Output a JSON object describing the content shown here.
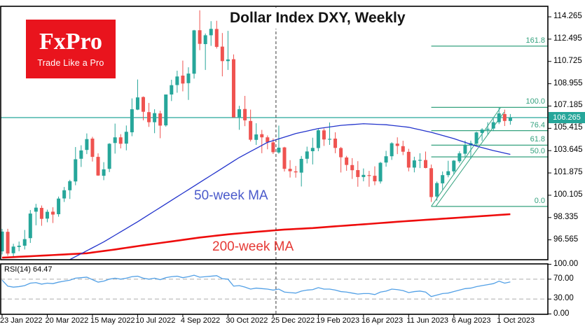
{
  "title": "Dollar Index DXY, Weekly",
  "logo": {
    "name": "FxPro",
    "tagline": "Trade Like a Pro"
  },
  "labels": {
    "ma50": "50-week MA",
    "ma200": "200-week MA",
    "rsi": "RSI(14) 64.47"
  },
  "price_axis": {
    "ticks": [
      114.265,
      112.495,
      110.725,
      108.955,
      107.185,
      105.415,
      103.645,
      101.875,
      100.105,
      98.335,
      96.565
    ],
    "current_price": "106.265"
  },
  "rsi_axis": {
    "ticks": [
      100,
      70,
      30,
      0
    ]
  },
  "colors": {
    "bull": "#26a69a",
    "bear": "#ef5350",
    "ma50_line": "#2233cc",
    "ma200_line": "#ee0c0c",
    "ma50_label": "#4a5acb",
    "ma200_label": "#e53935",
    "rsi_line": "#52a0e6",
    "fib": "#35a27f",
    "price_line": "#26a69a",
    "badge_bg": "#26a69a",
    "logo_bg": "#e9141d",
    "border": "#000000",
    "guide_dash": "#b5b5b5",
    "separator": "#3a3a3a"
  },
  "chart_data": {
    "type": "candlestick",
    "title": "Dollar Index DXY, Weekly",
    "symbol": "Dollar Index DXY",
    "timeframe": "Weekly",
    "x_ticks": [
      "23 Jan 2022",
      "20 Mar 2022",
      "15 May 2022",
      "10 Jul 2022",
      "4 Sep 2022",
      "30 Oct 2022",
      "25 Dec 2022",
      "19 Feb 2023",
      "16 Apr 2023",
      "11 Jun 2023",
      "6 Aug 2023",
      "1 Oct 2023"
    ],
    "weeks_per_tick": 8,
    "ylim": [
      94.9,
      115.1
    ],
    "current_price": 106.265,
    "year_separator_week": 48.5,
    "candles": [
      [
        95.65,
        97.44,
        95.4,
        97.22
      ],
      [
        97.2,
        97.44,
        95.3,
        95.48
      ],
      [
        95.5,
        96.25,
        95.17,
        96.03
      ],
      [
        96.0,
        96.43,
        95.66,
        96.1
      ],
      [
        96.1,
        97.35,
        95.8,
        96.62
      ],
      [
        96.7,
        98.93,
        96.32,
        98.65
      ],
      [
        98.8,
        99.42,
        97.72,
        99.12
      ],
      [
        99.1,
        99.29,
        97.68,
        98.23
      ],
      [
        98.25,
        98.96,
        97.96,
        98.79
      ],
      [
        98.8,
        99.15,
        97.9,
        98.57
      ],
      [
        98.6,
        100.0,
        98.4,
        99.84
      ],
      [
        99.85,
        100.76,
        99.57,
        100.5
      ],
      [
        100.5,
        101.33,
        99.81,
        101.22
      ],
      [
        101.2,
        103.93,
        100.9,
        102.96
      ],
      [
        103.0,
        104.07,
        102.35,
        103.66
      ],
      [
        103.7,
        105.01,
        103.37,
        104.56
      ],
      [
        104.6,
        104.74,
        102.78,
        103.15
      ],
      [
        103.15,
        103.43,
        101.64,
        101.67
      ],
      [
        101.65,
        102.73,
        101.3,
        102.16
      ],
      [
        102.2,
        104.24,
        101.94,
        104.19
      ],
      [
        104.25,
        105.79,
        103.41,
        104.7
      ],
      [
        104.7,
        104.95,
        103.82,
        104.19
      ],
      [
        104.2,
        105.64,
        103.67,
        105.14
      ],
      [
        105.1,
        107.79,
        104.79,
        106.93
      ],
      [
        106.9,
        109.29,
        106.86,
        107.87
      ],
      [
        107.9,
        107.95,
        106.05,
        106.73
      ],
      [
        106.7,
        107.43,
        105.53,
        105.9
      ],
      [
        105.9,
        106.93,
        105.03,
        106.62
      ],
      [
        106.6,
        106.81,
        104.63,
        105.63
      ],
      [
        105.65,
        108.02,
        105.55,
        108.1
      ],
      [
        108.1,
        109.27,
        107.58,
        108.84
      ],
      [
        108.85,
        109.99,
        108.24,
        109.53
      ],
      [
        109.6,
        110.79,
        108.35,
        108.97
      ],
      [
        109.0,
        110.26,
        107.67,
        109.76
      ],
      [
        109.75,
        113.23,
        109.36,
        113.19
      ],
      [
        113.2,
        114.78,
        111.62,
        112.12
      ],
      [
        112.1,
        112.94,
        110.05,
        112.8
      ],
      [
        112.8,
        113.92,
        111.96,
        113.31
      ],
      [
        113.3,
        113.95,
        111.75,
        111.88
      ],
      [
        111.9,
        112.98,
        109.54,
        110.75
      ],
      [
        110.75,
        113.15,
        110.05,
        110.88
      ],
      [
        110.9,
        111.28,
        106.27,
        106.29
      ],
      [
        106.3,
        107.2,
        105.3,
        106.93
      ],
      [
        106.95,
        107.99,
        105.59,
        106.05
      ],
      [
        106.0,
        106.9,
        104.37,
        104.51
      ],
      [
        104.5,
        105.82,
        104.1,
        104.93
      ],
      [
        104.95,
        105.29,
        103.44,
        104.7
      ],
      [
        104.7,
        104.85,
        103.75,
        104.31
      ],
      [
        104.3,
        104.61,
        103.38,
        103.52
      ],
      [
        103.5,
        105.63,
        103.4,
        103.88
      ],
      [
        103.9,
        103.95,
        101.99,
        102.2
      ],
      [
        102.2,
        102.89,
        101.51,
        102.01
      ],
      [
        102.0,
        102.43,
        101.5,
        101.92
      ],
      [
        101.9,
        103.22,
        100.8,
        102.99
      ],
      [
        103.0,
        103.96,
        102.63,
        103.58
      ],
      [
        103.6,
        104.67,
        102.55,
        103.86
      ],
      [
        103.85,
        105.36,
        103.6,
        105.26
      ],
      [
        105.25,
        105.4,
        104.02,
        104.53
      ],
      [
        104.55,
        105.88,
        104.1,
        104.58
      ],
      [
        104.6,
        105.1,
        103.44,
        103.86
      ],
      [
        103.85,
        103.94,
        101.91,
        103.12
      ],
      [
        103.1,
        103.23,
        102.04,
        102.51
      ],
      [
        102.5,
        103.05,
        101.4,
        102.09
      ],
      [
        102.1,
        102.81,
        100.78,
        101.55
      ],
      [
        101.55,
        102.23,
        101.21,
        101.72
      ],
      [
        101.7,
        102.04,
        100.78,
        101.66
      ],
      [
        101.65,
        102.4,
        100.9,
        101.21
      ],
      [
        101.2,
        102.75,
        101.03,
        102.68
      ],
      [
        102.7,
        103.63,
        102.37,
        103.2
      ],
      [
        103.2,
        104.31,
        102.91,
        104.23
      ],
      [
        104.2,
        104.7,
        103.37,
        104.02
      ],
      [
        104.0,
        104.43,
        103.29,
        103.56
      ],
      [
        103.55,
        103.79,
        102.0,
        102.3
      ],
      [
        102.3,
        103.16,
        101.92,
        102.87
      ],
      [
        102.85,
        103.44,
        102.26,
        102.91
      ],
      [
        102.9,
        103.57,
        102.24,
        102.27
      ],
      [
        102.25,
        102.54,
        99.57,
        99.96
      ],
      [
        100.0,
        101.19,
        99.67,
        101.07
      ],
      [
        101.05,
        101.99,
        100.55,
        101.7
      ],
      [
        101.7,
        102.84,
        101.53,
        102.01
      ],
      [
        102.0,
        102.9,
        101.74,
        102.85
      ],
      [
        102.8,
        103.59,
        102.66,
        103.43
      ],
      [
        103.4,
        104.44,
        103.09,
        104.08
      ],
      [
        104.05,
        104.44,
        102.99,
        104.24
      ],
      [
        104.2,
        105.15,
        103.99,
        105.09
      ],
      [
        105.05,
        105.43,
        104.42,
        105.32
      ],
      [
        105.3,
        105.9,
        104.91,
        105.38
      ],
      [
        105.4,
        106.2,
        105.2,
        105.9
      ],
      [
        105.9,
        107.08,
        105.75,
        106.6
      ],
      [
        106.55,
        106.9,
        105.6,
        106.0
      ],
      [
        106.0,
        106.55,
        105.7,
        106.265
      ]
    ],
    "ma50_points": [
      [
        0,
        92.8
      ],
      [
        6,
        93.4
      ],
      [
        12,
        95.0
      ],
      [
        18,
        96.4
      ],
      [
        24,
        98.0
      ],
      [
        30,
        99.7
      ],
      [
        36,
        101.4
      ],
      [
        42,
        103.1
      ],
      [
        47,
        104.3
      ],
      [
        52,
        105.0
      ],
      [
        56,
        105.4
      ],
      [
        60,
        105.65
      ],
      [
        64,
        105.78
      ],
      [
        68,
        105.7
      ],
      [
        72,
        105.5
      ],
      [
        76,
        105.1
      ],
      [
        80,
        104.6
      ],
      [
        84,
        104.0
      ],
      [
        87,
        103.65
      ],
      [
        90,
        103.35
      ]
    ],
    "ma200_points": [
      [
        0,
        95.15
      ],
      [
        10,
        95.38
      ],
      [
        15,
        95.5
      ],
      [
        20,
        95.8
      ],
      [
        25,
        96.13
      ],
      [
        31,
        96.5
      ],
      [
        35,
        96.75
      ],
      [
        40,
        97.0
      ],
      [
        45,
        97.2
      ],
      [
        50,
        97.38
      ],
      [
        55,
        97.5
      ],
      [
        60,
        97.67
      ],
      [
        65,
        97.83
      ],
      [
        70,
        98.0
      ],
      [
        75,
        98.15
      ],
      [
        80,
        98.3
      ],
      [
        85,
        98.45
      ],
      [
        90,
        98.6
      ]
    ],
    "rsi": {
      "period": 14,
      "last": 64.47,
      "guides": [
        70,
        30
      ],
      "scale_ticks": [
        100,
        70,
        30,
        0
      ],
      "values": [
        68,
        56,
        54,
        55,
        57,
        62,
        63,
        60,
        62,
        61,
        64,
        66,
        68,
        72,
        73,
        74,
        69,
        64,
        66,
        70,
        72,
        70,
        72,
        75,
        76,
        72,
        70,
        72,
        69,
        73,
        75,
        76,
        73,
        75,
        78,
        74,
        75,
        76,
        77,
        71,
        70,
        56,
        57,
        54,
        50,
        52,
        51,
        50,
        48,
        50,
        44,
        43,
        42,
        46,
        48,
        49,
        53,
        50,
        50,
        48,
        45,
        44,
        42,
        40,
        41,
        41,
        39,
        44,
        46,
        50,
        49,
        47,
        43,
        45,
        46,
        44,
        35,
        38,
        41,
        42,
        45,
        48,
        51,
        52,
        55,
        57,
        59,
        61,
        66,
        62,
        64.47
      ]
    },
    "fibonacci": {
      "start_week": 76,
      "low": 99.22,
      "high": 107.08,
      "levels": [
        {
          "label": "161.8",
          "price": 111.94
        },
        {
          "label": "100.0",
          "price": 107.08
        },
        {
          "label": "76.4",
          "price": 105.23
        },
        {
          "label": "61.8",
          "price": 104.08
        },
        {
          "label": "50.0",
          "price": 103.15
        },
        {
          "label": "0.0",
          "price": 99.22
        }
      ]
    },
    "channel": [
      {
        "w1": 76.0,
        "p1": 99.22,
        "w2": 88.3,
        "p2": 107.08
      },
      {
        "w1": 76.8,
        "p1": 99.22,
        "w2": 88.9,
        "p2": 106.7
      }
    ]
  }
}
